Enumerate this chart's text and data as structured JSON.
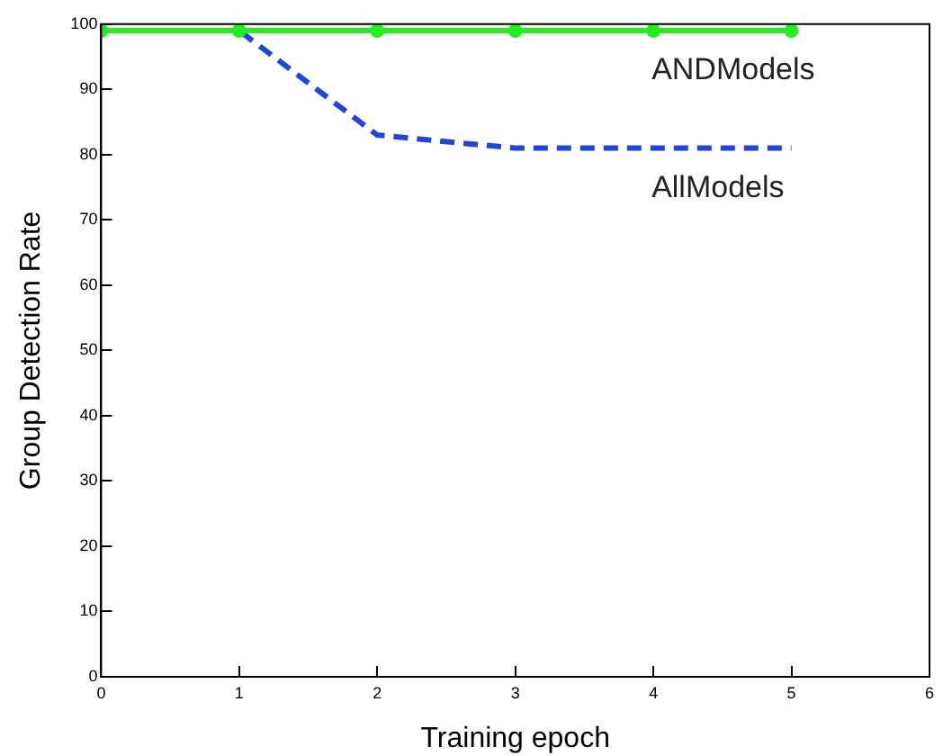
{
  "chart_data": {
    "type": "line",
    "xlabel": "Training epoch",
    "ylabel": "Group Detection Rate",
    "x": [
      0,
      1,
      2,
      3,
      4,
      5
    ],
    "series": [
      {
        "name": "ANDModels",
        "color": "#22ee22",
        "values": [
          99,
          99,
          99,
          99,
          99,
          99
        ],
        "marker": "circle",
        "line_style": "solid"
      },
      {
        "name": "AllModels",
        "color": "#2244dd",
        "values": [
          99,
          99,
          83,
          81,
          81,
          81
        ],
        "marker": "none",
        "line_style": "dashed"
      }
    ],
    "xlim": [
      0,
      6
    ],
    "xticks": [
      0,
      1,
      2,
      3,
      4,
      5,
      6
    ],
    "ylim": [
      0,
      100
    ],
    "yticks": [
      0,
      10,
      20,
      30,
      40,
      50,
      60,
      70,
      80,
      90,
      100
    ],
    "grid": false,
    "legend": false
  }
}
